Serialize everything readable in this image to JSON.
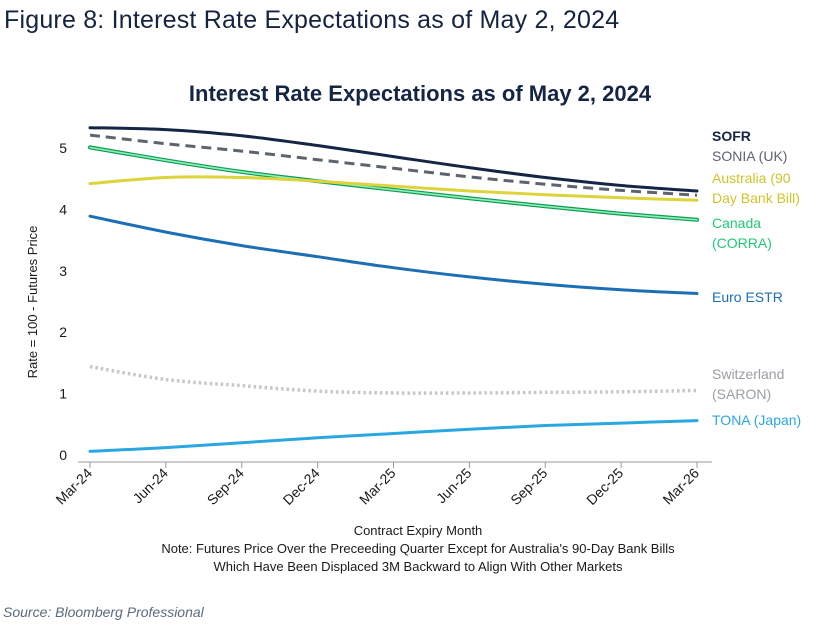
{
  "figure_heading": "Figure 8: Interest Rate Expectations as of May 2, 2024",
  "source": "Source: Bloomberg Professional",
  "chart_data": {
    "type": "line",
    "title": "Interest Rate Expectations as of May 2, 2024",
    "xlabel": "Contract Expiry Month",
    "ylabel": "Rate = 100 - Futures Price",
    "note_lines": [
      "Note: Futures Price Over the Preceeding Quarter Except for Australia's 90-Day Bank Bills",
      "Which Have Been Displaced 3M Backward to Align With Other Markets"
    ],
    "categories": [
      "Mar-24",
      "Jun-24",
      "Sep-24",
      "Dec-24",
      "Mar-25",
      "Jun-25",
      "Sep-25",
      "Dec-25",
      "Mar-26"
    ],
    "ylim": [
      0,
      5.5
    ],
    "yticks": [
      0,
      1,
      2,
      3,
      4,
      5
    ],
    "grid": false,
    "legend": "labels at right end of each line",
    "series": [
      {
        "name": "SOFR",
        "label_lines": [
          "SOFR"
        ],
        "color": "#152544",
        "style": "solid",
        "values": [
          5.33,
          5.3,
          5.2,
          5.04,
          4.86,
          4.68,
          4.52,
          4.39,
          4.3
        ]
      },
      {
        "name": "SONIA (UK)",
        "label_lines": [
          "SONIA (UK)"
        ],
        "color": "#5d6470",
        "style": "dashed",
        "values": [
          5.21,
          5.07,
          4.95,
          4.81,
          4.67,
          4.53,
          4.41,
          4.31,
          4.23
        ]
      },
      {
        "name": "Australia (90 Day Bank Bill)",
        "label_lines": [
          "Australia (90",
          "Day Bank Bill)"
        ],
        "color": "#dcd43a",
        "style": "solid",
        "values": [
          4.42,
          4.52,
          4.52,
          4.46,
          4.38,
          4.3,
          4.24,
          4.19,
          4.15
        ]
      },
      {
        "name": "Canada (CORRA)",
        "label_lines": [
          "Canada",
          "(CORRA)"
        ],
        "color": "#2ed67e",
        "style": "solid",
        "values": [
          5.01,
          4.8,
          4.61,
          4.46,
          4.32,
          4.18,
          4.05,
          3.93,
          3.83
        ]
      },
      {
        "name": "Euro ESTR",
        "label_lines": [
          "Euro ESTR"
        ],
        "color": "#1c6fb5",
        "style": "solid",
        "values": [
          3.89,
          3.63,
          3.41,
          3.23,
          3.05,
          2.9,
          2.78,
          2.69,
          2.63
        ]
      },
      {
        "name": "Switzerland (SARON)",
        "label_lines": [
          "Switzerland",
          "(SARON)"
        ],
        "color": "#c4c6ca",
        "style": "dotted",
        "values": [
          1.44,
          1.23,
          1.13,
          1.04,
          1.01,
          1.01,
          1.02,
          1.03,
          1.05
        ]
      },
      {
        "name": "TONA (Japan)",
        "label_lines": [
          "TONA (Japan)"
        ],
        "color": "#2aa7e0",
        "style": "solid",
        "values": [
          0.06,
          0.12,
          0.2,
          0.28,
          0.35,
          0.42,
          0.48,
          0.52,
          0.56
        ]
      }
    ]
  }
}
